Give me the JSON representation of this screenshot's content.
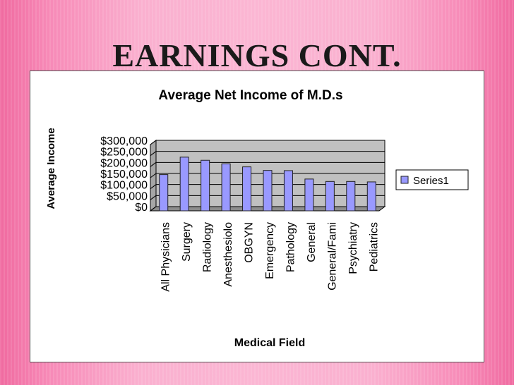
{
  "slide": {
    "title": "EARNINGS CONT."
  },
  "colors": {
    "bar_fill": "#9999ff",
    "bar_stroke": "#222222",
    "plot_bg": "#c0c0c0",
    "gridline": "#000000",
    "slide_pink": "#f78ab7"
  },
  "chart_data": {
    "type": "bar",
    "title": "Average Net Income of M.D.s",
    "xlabel": "Medical Field",
    "ylabel": "Average Income",
    "categories": [
      "All Physicians",
      "Surgery",
      "Radiology",
      "Anesthesiolo",
      "OBGYN",
      "Emergency",
      "Pathology",
      "General",
      "General/Fami",
      "Psychiatry",
      "Pediatrics"
    ],
    "series": [
      {
        "name": "Series1",
        "values": [
          164000,
          243000,
          229000,
          213000,
          199000,
          183000,
          182000,
          144000,
          133000,
          133000,
          131000
        ]
      }
    ],
    "ylim": [
      0,
      300000
    ],
    "yticks": [
      0,
      50000,
      100000,
      150000,
      200000,
      250000,
      300000
    ],
    "ytick_labels": [
      "$0",
      "$50,000",
      "$100,000",
      "$150,000",
      "$200,000",
      "$250,000",
      "$300,000"
    ],
    "grid": true,
    "legend": "right"
  }
}
